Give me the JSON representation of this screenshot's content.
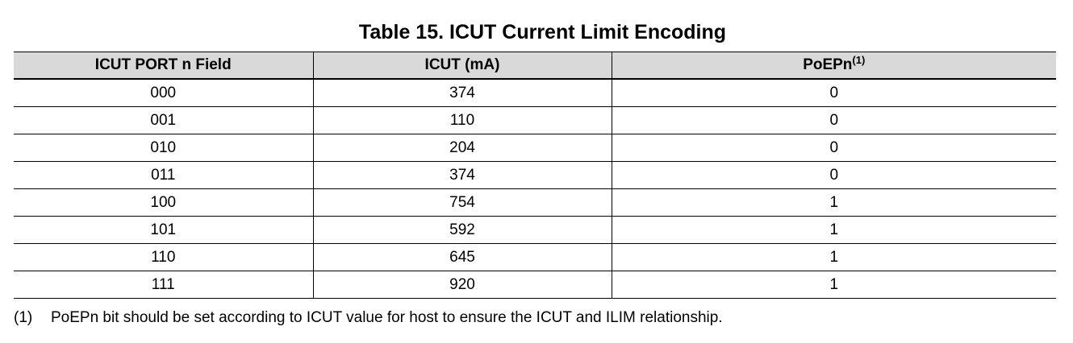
{
  "title": "Table 15. ICUT Current Limit Encoding",
  "table": {
    "headers": [
      "ICUT PORT n Field",
      "ICUT (mA)",
      "PoEPn"
    ],
    "header_superscript": "(1)",
    "rows": [
      [
        "000",
        "374",
        "0"
      ],
      [
        "001",
        "110",
        "0"
      ],
      [
        "010",
        "204",
        "0"
      ],
      [
        "011",
        "374",
        "0"
      ],
      [
        "100",
        "754",
        "1"
      ],
      [
        "101",
        "592",
        "1"
      ],
      [
        "110",
        "645",
        "1"
      ],
      [
        "111",
        "920",
        "1"
      ]
    ]
  },
  "footnote": {
    "mark": "(1)",
    "text": "PoEPn bit should be set according to ICUT value for host to ensure the ICUT and ILIM relationship."
  },
  "colors": {
    "header_background": "#d9d9d9",
    "border": "#000000",
    "text": "#000000"
  }
}
